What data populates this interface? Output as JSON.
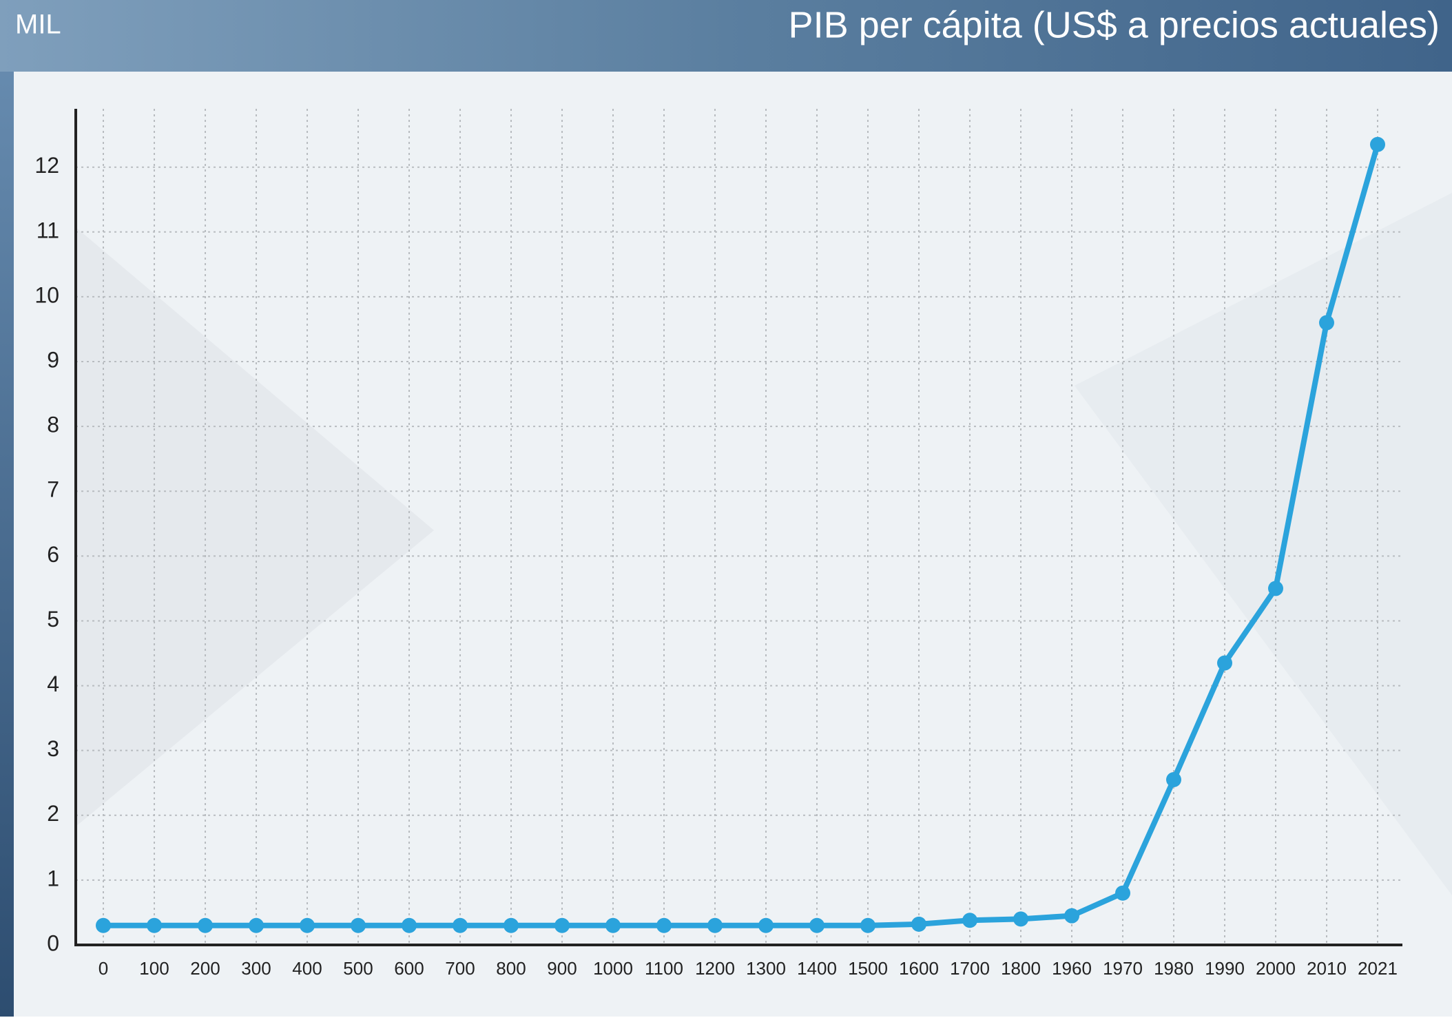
{
  "chart_data": {
    "type": "line",
    "title": "PIB per cápita (US$ a precios actuales)",
    "y_label": "MIL",
    "categories": [
      "0",
      "100",
      "200",
      "300",
      "400",
      "500",
      "600",
      "700",
      "800",
      "900",
      "1000",
      "1100",
      "1200",
      "1300",
      "1400",
      "1500",
      "1600",
      "1700",
      "1800",
      "1960",
      "1970",
      "1980",
      "1990",
      "2000",
      "2010",
      "2021"
    ],
    "values": [
      0.3,
      0.3,
      0.3,
      0.3,
      0.3,
      0.3,
      0.3,
      0.3,
      0.3,
      0.3,
      0.3,
      0.3,
      0.3,
      0.3,
      0.3,
      0.3,
      0.32,
      0.38,
      0.4,
      0.45,
      0.8,
      2.55,
      4.35,
      5.5,
      9.6,
      12.35
    ],
    "color": "#2ba3dc",
    "ylim": [
      0,
      12.9
    ],
    "yticks": [
      0,
      1,
      2,
      3,
      4,
      5,
      6,
      7,
      8,
      9,
      10,
      11,
      12
    ],
    "grid": true
  }
}
